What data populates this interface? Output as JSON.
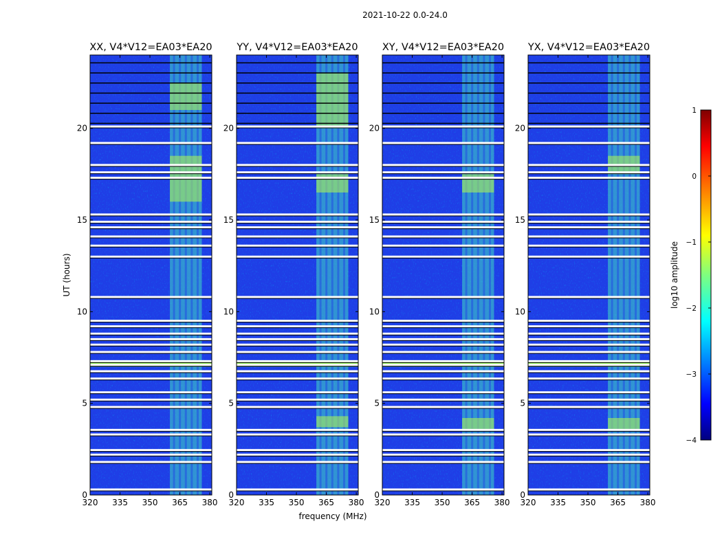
{
  "chart_data": {
    "type": "heatmap",
    "suptitle": "2021-10-22 0.0-24.0",
    "xlabel": "frequency (MHz)",
    "ylabel": "UT (hours)",
    "xlim": [
      320,
      381
    ],
    "ylim": [
      0,
      24
    ],
    "xticks": [
      320,
      335,
      350,
      365,
      380
    ],
    "yticks": [
      0,
      5,
      10,
      15,
      20
    ],
    "rfi_band_mhz": [
      360,
      376
    ],
    "flagged_hours": [
      0.3,
      1.8,
      2.2,
      2.45,
      3.3,
      3.55,
      4.8,
      5.2,
      5.6,
      6.35,
      6.75,
      7.1,
      7.3,
      7.8,
      8.2,
      8.5,
      8.8,
      9.2,
      9.5,
      10.8,
      13.0,
      13.6,
      14.1,
      14.6,
      14.9,
      15.3,
      17.3,
      17.6,
      18.0,
      19.2,
      20.1
    ],
    "panels": [
      {
        "title": "XX, V4*V12=EA03*EA20",
        "strong_hours": [
          [
            16,
            18.5
          ],
          [
            21,
            22.5
          ]
        ]
      },
      {
        "title": "YY, V4*V12=EA03*EA20",
        "strong_hours": [
          [
            3.7,
            4.3
          ],
          [
            16.5,
            17.5
          ],
          [
            20,
            23
          ]
        ]
      },
      {
        "title": "XY, V4*V12=EA03*EA20",
        "strong_hours": [
          [
            3.5,
            4.2
          ],
          [
            16.5,
            17.5
          ]
        ]
      },
      {
        "title": "YX, V4*V12=EA03*EA20",
        "strong_hours": [
          [
            3.5,
            4.2
          ],
          [
            17.5,
            18.5
          ]
        ]
      }
    ],
    "colorbar": {
      "label": "log10 amplitude",
      "range": [
        -4,
        1
      ],
      "ticks": [
        "1",
        "0",
        "−1",
        "−2",
        "−3",
        "−4"
      ]
    }
  }
}
